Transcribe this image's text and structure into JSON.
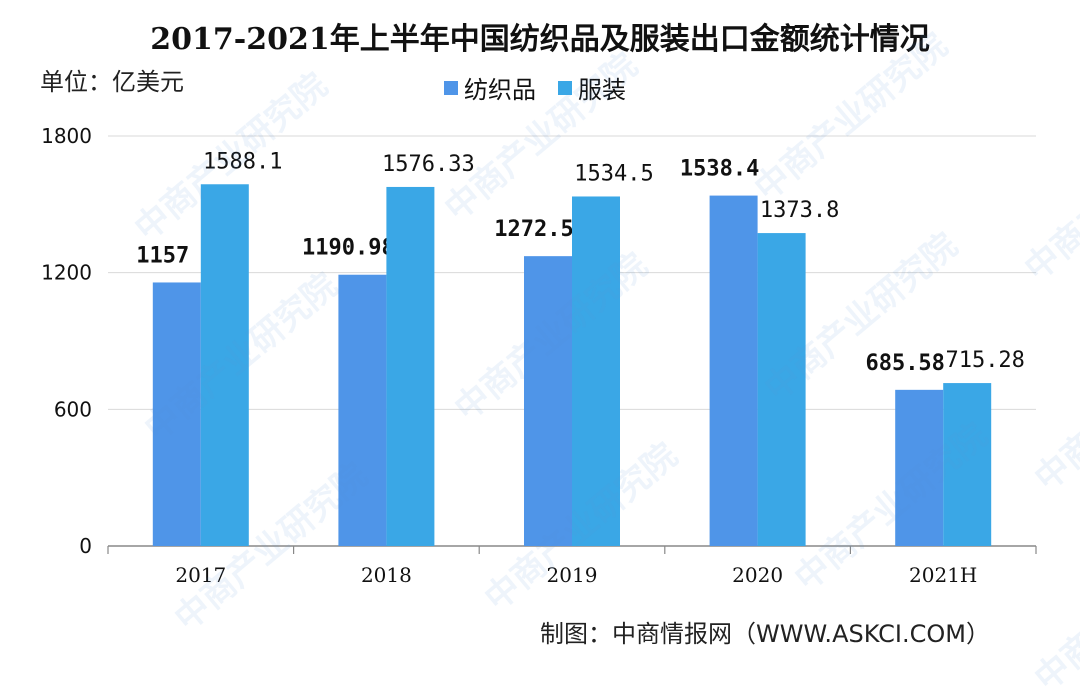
{
  "watermark": "中商产业研究院",
  "unit_label": "单位：亿美元",
  "source": "制图：中商情报网（WWW.ASKCI.COM）",
  "colors": {
    "series1": "#4f95e8",
    "series2": "#3aa7e6",
    "grid": "#d9d9d9",
    "axis": "#888888"
  },
  "chart_data": {
    "type": "bar",
    "title": "2017-2021年上半年中国纺织品及服装出口金额统计情况",
    "categories": [
      "2017",
      "2018",
      "2019",
      "2020",
      "2021H"
    ],
    "series": [
      {
        "name": "纺织品",
        "values": [
          1157,
          1190.98,
          1272.5,
          1538.4,
          685.58
        ],
        "labels": [
          "1157",
          "1190.98",
          "1272.5",
          "1538.4",
          "685.58"
        ]
      },
      {
        "name": "服装",
        "values": [
          1588.1,
          1576.33,
          1534.5,
          1373.8,
          715.28
        ],
        "labels": [
          "1588.1",
          "1576.33",
          "1534.5",
          "1373.8",
          "715.28"
        ]
      }
    ],
    "yticks": [
      0,
      600,
      1200,
      1800
    ],
    "ylim": [
      0,
      1800
    ],
    "grid": true,
    "legend_position": "top"
  }
}
